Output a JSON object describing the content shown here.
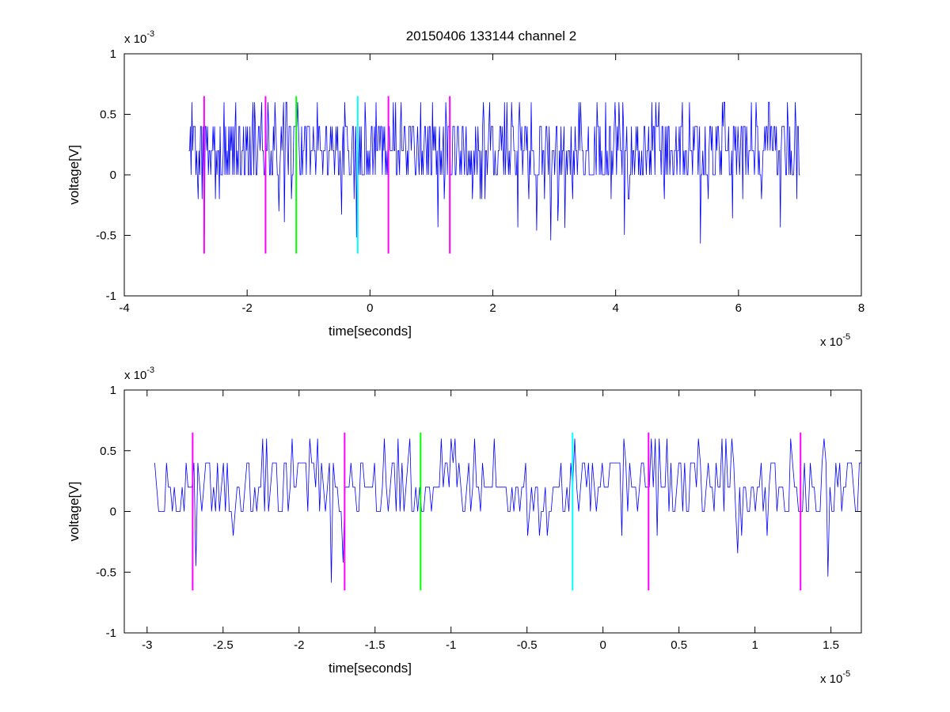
{
  "chart_data": [
    {
      "type": "line",
      "title": "20150406 133144 channel 2",
      "xlabel": "time[seconds]",
      "ylabel": "voltage[V]",
      "x_exponent": "x 10",
      "x_exponent_power": "-5",
      "y_exponent": "x 10",
      "y_exponent_power": "-3",
      "xlim": [
        -4e-05,
        8e-05
      ],
      "ylim": [
        -0.001,
        0.001
      ],
      "xticks": [
        -4e-05,
        -2e-05,
        0,
        2e-05,
        4e-05,
        6e-05,
        8e-05
      ],
      "xtick_labels": [
        "-4",
        "-2",
        "0",
        "2",
        "4",
        "6",
        "8"
      ],
      "yticks": [
        -0.001,
        -0.0005,
        0,
        0.0005,
        0.001
      ],
      "ytick_labels": [
        "-1",
        "-0.5",
        "0",
        "0.5",
        "1"
      ],
      "grid": false,
      "signal": {
        "color": "#0000ff",
        "x_start": -2.95e-05,
        "x_end": 7e-05,
        "levels": [
          -0.0006,
          -0.0002,
          0,
          0.0002,
          0.0004,
          0.0006
        ],
        "baseline": 0.0002
      },
      "markers": [
        {
          "x": -2.7e-05,
          "color": "#ff00ff"
        },
        {
          "x": -1.7e-05,
          "color": "#ff00ff"
        },
        {
          "x": -1.2e-05,
          "color": "#00ff00"
        },
        {
          "x": -2e-06,
          "color": "#00ffff"
        },
        {
          "x": 3e-06,
          "color": "#ff00ff"
        },
        {
          "x": 1.3e-05,
          "color": "#ff00ff"
        }
      ],
      "marker_ylim": [
        -0.00065,
        0.00065
      ]
    },
    {
      "type": "line",
      "xlabel": "time[seconds]",
      "ylabel": "voltage[V]",
      "x_exponent": "x 10",
      "x_exponent_power": "-5",
      "y_exponent": "x 10",
      "y_exponent_power": "-3",
      "xlim": [
        -3.15e-05,
        1.7e-05
      ],
      "ylim": [
        -0.001,
        0.001
      ],
      "xticks": [
        -3e-05,
        -2.5e-05,
        -2e-05,
        -1.5e-05,
        -1e-05,
        -5e-06,
        0,
        5e-06,
        1e-05,
        1.5e-05
      ],
      "xtick_labels": [
        "-3",
        "-2.5",
        "-2",
        "-1.5",
        "-1",
        "-0.5",
        "0",
        "0.5",
        "1",
        "1.5"
      ],
      "yticks": [
        -0.001,
        -0.0005,
        0,
        0.0005,
        0.001
      ],
      "ytick_labels": [
        "-1",
        "-0.5",
        "0",
        "0.5",
        "1"
      ],
      "grid": false,
      "signal": {
        "color": "#0000ff",
        "x_start": -2.95e-05,
        "x_end": 1.7e-05,
        "levels": [
          -0.0006,
          -0.0002,
          0,
          0.0002,
          0.0004,
          0.0006
        ],
        "baseline": 0.0002
      },
      "markers": [
        {
          "x": -2.7e-05,
          "color": "#ff00ff"
        },
        {
          "x": -1.7e-05,
          "color": "#ff00ff"
        },
        {
          "x": -1.2e-05,
          "color": "#00ff00"
        },
        {
          "x": -2e-06,
          "color": "#00ffff"
        },
        {
          "x": 3e-06,
          "color": "#ff00ff"
        },
        {
          "x": 1.3e-05,
          "color": "#ff00ff"
        }
      ],
      "marker_ylim": [
        -0.00065,
        0.00065
      ]
    }
  ]
}
